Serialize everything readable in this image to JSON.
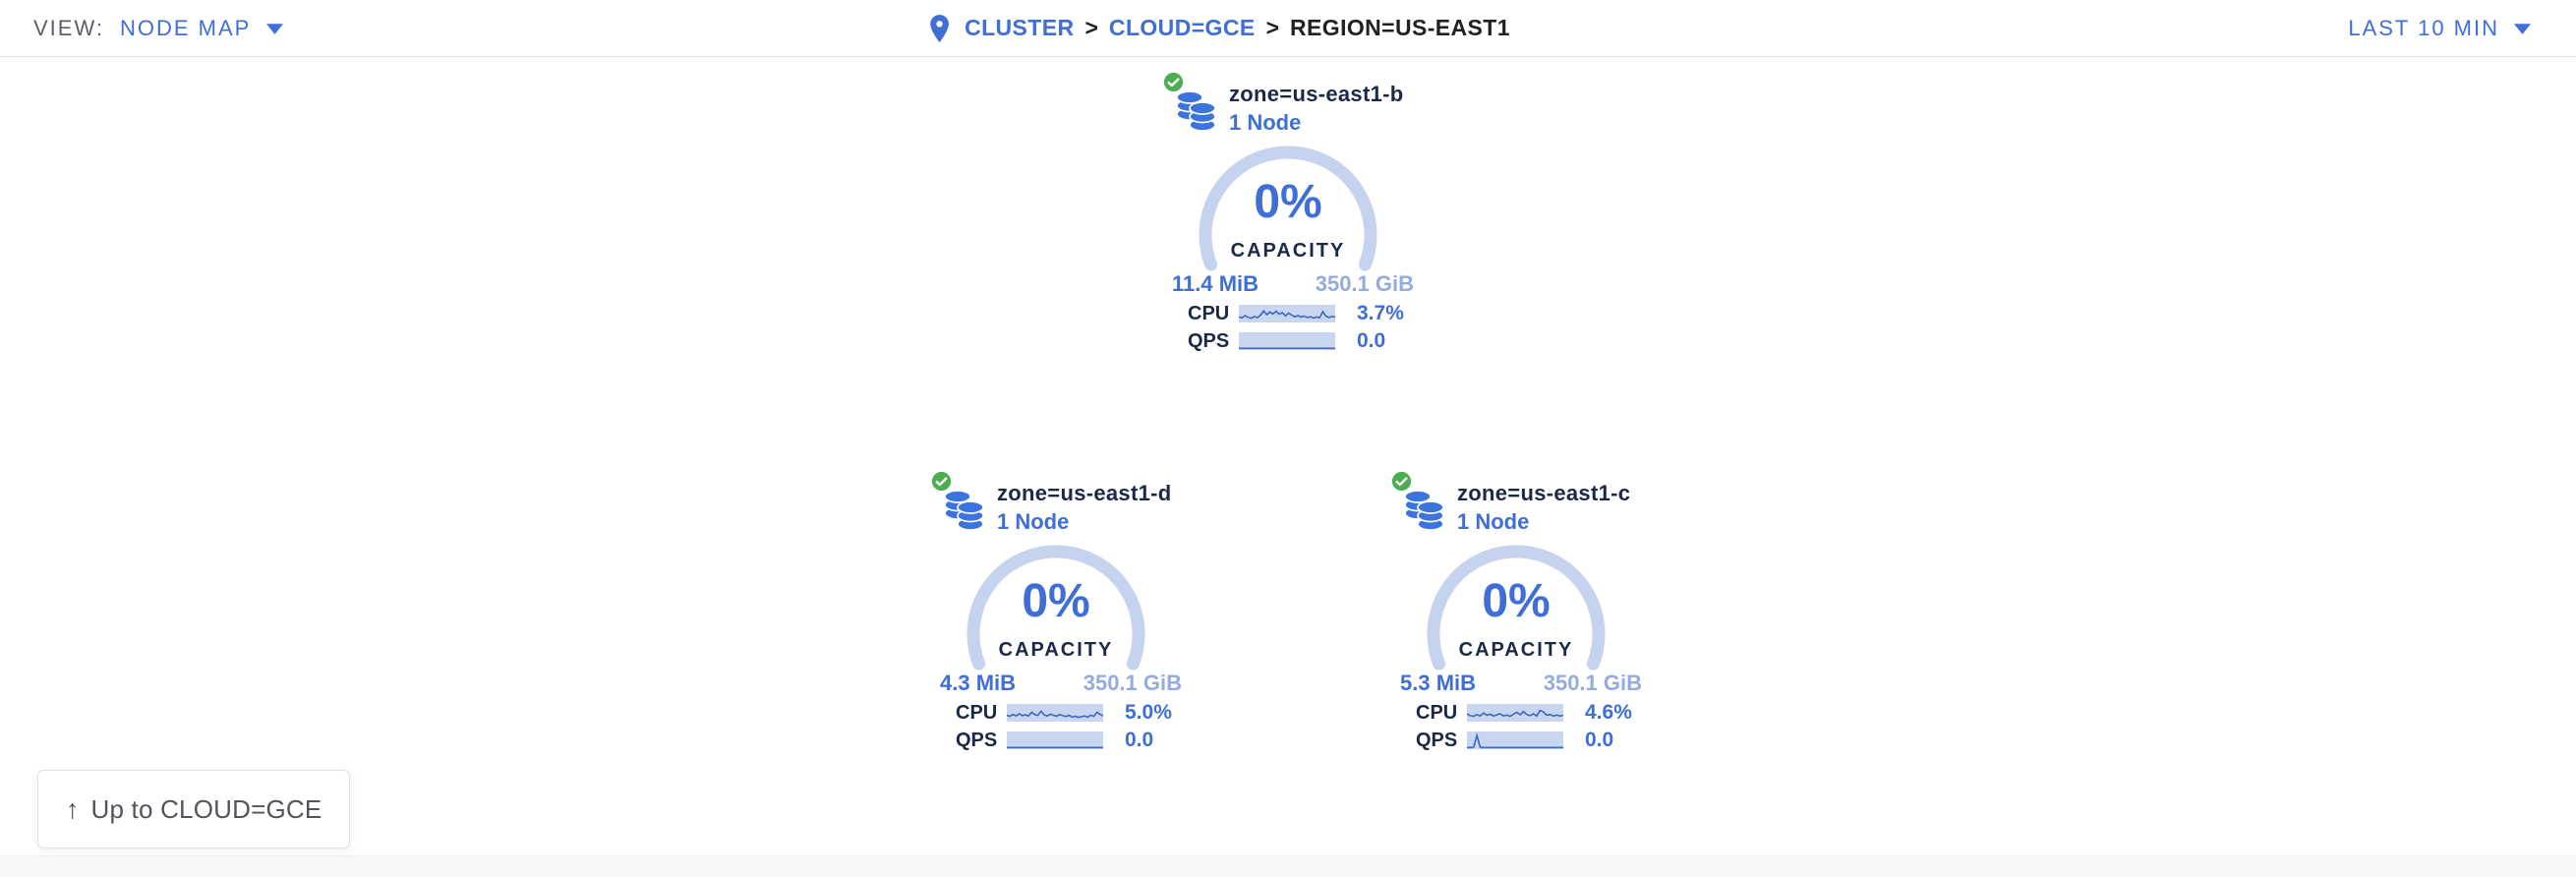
{
  "header": {
    "view_label": "VIEW:",
    "view_value": "NODE MAP",
    "separator": ">",
    "breadcrumb": [
      {
        "label": "CLUSTER"
      },
      {
        "label": "CLOUD=GCE"
      },
      {
        "label": "REGION=US-EAST1"
      }
    ],
    "time_range": "LAST 10 MIN"
  },
  "cards": [
    {
      "title": "zone=us-east1-b",
      "node_count": "1 Node",
      "status": "healthy",
      "capacity_pct": "0%",
      "capacity_label": "CAPACITY",
      "used": "11.4 MiB",
      "total": "350.1 GiB",
      "cpu_label": "CPU",
      "cpu_value": "3.7%",
      "qps_label": "QPS",
      "qps_value": "0.0",
      "cpu_spark": [
        0.3,
        0.22,
        0.38,
        0.26,
        0.2,
        0.32,
        0.24,
        0.42,
        0.7,
        0.45,
        0.62,
        0.5,
        0.68,
        0.48,
        0.58,
        0.36,
        0.55,
        0.42,
        0.3,
        0.38,
        0.28,
        0.35,
        0.25,
        0.3,
        0.22,
        0.28,
        0.24,
        0.65,
        0.35,
        0.25,
        0.32,
        0.28
      ],
      "qps_spark": [
        0.02,
        0.02,
        0.02,
        0.02,
        0.02,
        0.02,
        0.02,
        0.02,
        0.02,
        0.02,
        0.02,
        0.02,
        0.02,
        0.02,
        0.02,
        0.02,
        0.02,
        0.02,
        0.02,
        0.02,
        0.02,
        0.02,
        0.02,
        0.02,
        0.02,
        0.02,
        0.02,
        0.02,
        0.02,
        0.02
      ]
    },
    {
      "title": "zone=us-east1-d",
      "node_count": "1 Node",
      "status": "healthy",
      "capacity_pct": "0%",
      "capacity_label": "CAPACITY",
      "used": "4.3 MiB",
      "total": "350.1 GiB",
      "cpu_label": "CPU",
      "cpu_value": "5.0%",
      "qps_label": "QPS",
      "qps_value": "0.0",
      "cpu_spark": [
        0.35,
        0.28,
        0.4,
        0.3,
        0.45,
        0.32,
        0.38,
        0.3,
        0.55,
        0.4,
        0.34,
        0.62,
        0.38,
        0.3,
        0.42,
        0.35,
        0.28,
        0.4,
        0.32,
        0.26,
        0.35,
        0.22,
        0.28,
        0.2,
        0.25,
        0.3,
        0.22,
        0.35,
        0.28,
        0.55,
        0.42,
        0.3
      ],
      "qps_spark": [
        0.02,
        0.02,
        0.02,
        0.02,
        0.02,
        0.02,
        0.02,
        0.02,
        0.02,
        0.02,
        0.02,
        0.02,
        0.02,
        0.02,
        0.02,
        0.02,
        0.02,
        0.02,
        0.02,
        0.02,
        0.02,
        0.02,
        0.02,
        0.02,
        0.02,
        0.02,
        0.02,
        0.02,
        0.02,
        0.02
      ]
    },
    {
      "title": "zone=us-east1-c",
      "node_count": "1 Node",
      "status": "healthy",
      "capacity_pct": "0%",
      "capacity_label": "CAPACITY",
      "used": "5.3 MiB",
      "total": "350.1 GiB",
      "cpu_label": "CPU",
      "cpu_value": "4.6%",
      "qps_label": "QPS",
      "qps_value": "0.0",
      "cpu_spark": [
        0.45,
        0.32,
        0.28,
        0.4,
        0.3,
        0.5,
        0.35,
        0.42,
        0.3,
        0.38,
        0.45,
        0.3,
        0.36,
        0.28,
        0.42,
        0.55,
        0.38,
        0.6,
        0.4,
        0.32,
        0.45,
        0.3,
        0.68,
        0.58,
        0.35,
        0.4,
        0.3,
        0.36,
        0.3,
        0.34
      ],
      "qps_spark": [
        0.02,
        0.02,
        0.04,
        0.85,
        0.04,
        0.02,
        0.02,
        0.02,
        0.02,
        0.02,
        0.02,
        0.02,
        0.02,
        0.02,
        0.02,
        0.02,
        0.02,
        0.02,
        0.02,
        0.02,
        0.02,
        0.02,
        0.02,
        0.02,
        0.02,
        0.02,
        0.02,
        0.02,
        0.02,
        0.02
      ]
    }
  ],
  "back_button": {
    "label": "Up to CLOUD=GCE"
  },
  "icons": {
    "status": "check-circle",
    "zone": "database-stack",
    "location": "map-pin",
    "caret": "chevron-down",
    "up": "arrow-up"
  },
  "colors": {
    "accent_blue": "#3e6ed6",
    "dim_blue": "#93abdf",
    "navy_text": "#1b2846",
    "arc_blue": "#c5d3ee",
    "spark_bg": "#c9d6f0",
    "spark_line": "#4067be",
    "healthy_green": "#4fad51"
  }
}
